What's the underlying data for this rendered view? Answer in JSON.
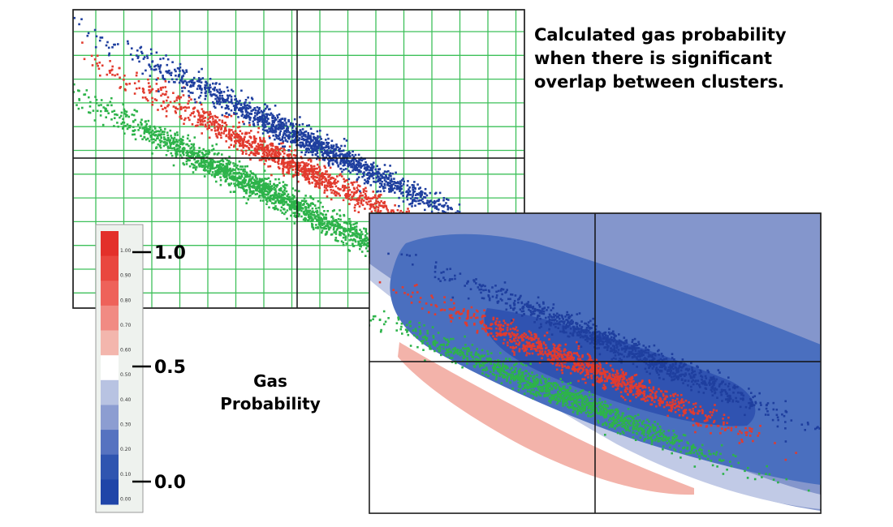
{
  "caption": {
    "lines": [
      "Calculated gas probability",
      "when there is significant",
      "overlap between clusters."
    ]
  },
  "legend": {
    "title_lines": [
      "Gas",
      "Probability"
    ],
    "callouts": [
      "1.0",
      "0.5",
      "0.0"
    ]
  },
  "colors": {
    "gas_high": "#e83020",
    "gas_mid": "#f08080",
    "neutral": "#ffffff",
    "brine_low": "#1f4aa8",
    "cluster_green": "#2db34a",
    "cluster_red": "#e23b2e",
    "cluster_blue": "#1f3f9f",
    "grid_green": "#3ec05a",
    "bg_dark_blue": "#4a6fbf",
    "bg_light_blue": "#8496cc",
    "bg_pale_pink": "#f3b3aa"
  },
  "chart_data": [
    {
      "type": "scatter",
      "title": "",
      "xlabel": "",
      "ylabel": "",
      "grid": true,
      "series": [
        {
          "color": "#e23b2e",
          "x_center": 0.48,
          "y_center": 0.49,
          "count": 1200
        },
        {
          "color": "#1f3f9f",
          "x_center": 0.52,
          "y_center": 0.56,
          "count": 1500
        },
        {
          "color": "#2db34a",
          "x_center": 0.42,
          "y_center": 0.4,
          "count": 1700
        }
      ]
    },
    {
      "type": "heatmap",
      "title": "",
      "xlabel": "",
      "ylabel": "",
      "grid": false,
      "series": [
        {
          "color": "#e23b2e",
          "x_center": 0.48,
          "y_center": 0.49,
          "count": 1000
        },
        {
          "color": "#1f3f9f",
          "x_center": 0.55,
          "y_center": 0.56,
          "count": 1000
        },
        {
          "color": "#2db34a",
          "x_center": 0.42,
          "y_center": 0.4,
          "count": 1200
        }
      ]
    },
    {
      "type": "bar",
      "title": "",
      "tick_labels": [
        "1.00",
        "0.90",
        "0.80",
        "0.70",
        "0.60",
        "0.50",
        "0.40",
        "0.30",
        "0.20",
        "0.10",
        "0.00"
      ],
      "bins": [
        {
          "label": "1.00",
          "value": 1.0,
          "color": "#e3302a"
        },
        {
          "label": "0.90",
          "value": 0.9,
          "color": "#e9473f"
        },
        {
          "label": "0.80",
          "value": 0.8,
          "color": "#ee625a"
        },
        {
          "label": "0.70",
          "value": 0.7,
          "color": "#f18b83"
        },
        {
          "label": "0.60",
          "value": 0.6,
          "color": "#f3b6ad"
        },
        {
          "label": "0.50",
          "value": 0.5,
          "color": "#ffffff"
        },
        {
          "label": "0.40",
          "value": 0.4,
          "color": "#b8c3e2"
        },
        {
          "label": "0.30",
          "value": 0.3,
          "color": "#8c9dd1"
        },
        {
          "label": "0.20",
          "value": 0.2,
          "color": "#5673c0"
        },
        {
          "label": "0.10",
          "value": 0.1,
          "color": "#2f55b0"
        },
        {
          "label": "0.00",
          "value": 0.0,
          "color": "#1f45a8"
        }
      ]
    }
  ]
}
